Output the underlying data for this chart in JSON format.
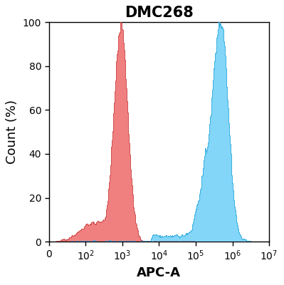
{
  "title": "DMC268",
  "xlabel": "APC-A",
  "ylabel": "Count (%)",
  "ylim": [
    0,
    100
  ],
  "yticks": [
    0,
    20,
    40,
    60,
    80,
    100
  ],
  "xtick_positions": [
    1.0,
    2.0,
    3.0,
    4.0,
    5.0,
    6.0,
    7.0
  ],
  "xtick_labels": [
    "0",
    "10$^2$",
    "10$^3$",
    "10$^4$",
    "10$^5$",
    "10$^6$",
    "10$^7$"
  ],
  "red_fill": "#f08080",
  "red_edge": "#d05050",
  "blue_fill": "#6dcff6",
  "blue_edge": "#3ab0e0",
  "overlap_color": "#9060a0",
  "background": "#ffffff",
  "title_fontsize": 15,
  "title_fontweight": "bold",
  "label_fontsize": 13,
  "tick_fontsize": 10,
  "red_peak_log": 2.95,
  "red_peak_height": 100,
  "blue_peak_log": 5.68,
  "blue_peak_height": 100,
  "figsize": [
    3.99,
    4.0
  ],
  "dpi": 100
}
